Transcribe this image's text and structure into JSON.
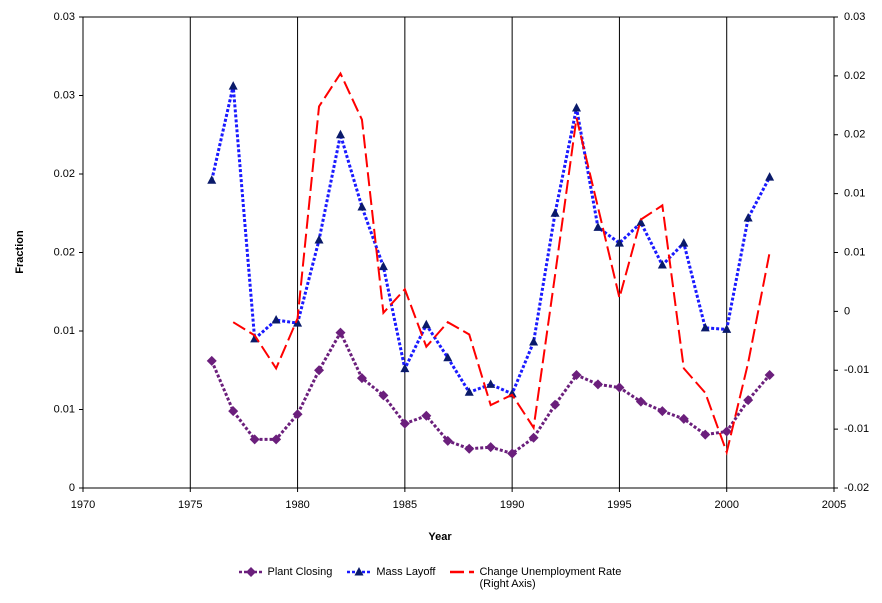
{
  "chart_data": {
    "type": "line",
    "xlabel": "Year",
    "ylabel": "Fraction",
    "x": [
      1976,
      1977,
      1978,
      1979,
      1980,
      1981,
      1982,
      1983,
      1984,
      1985,
      1986,
      1987,
      1988,
      1989,
      1990,
      1991,
      1992,
      1993,
      1994,
      1995,
      1996,
      1997,
      1998,
      1999,
      2000,
      2001,
      2002
    ],
    "series": [
      {
        "name": "Plant Closing",
        "color": "#6b1f7c",
        "linestyle": "dotted",
        "marker": "diamond",
        "values": [
          0.0081,
          0.0049,
          0.0031,
          0.0031,
          0.0047,
          0.0075,
          0.0099,
          0.007,
          0.0059,
          0.0041,
          0.0046,
          0.003,
          0.0025,
          0.0026,
          0.0022,
          0.0032,
          0.0053,
          0.0072,
          0.0066,
          0.0064,
          0.0055,
          0.0049,
          0.0044,
          0.0034,
          0.0036,
          0.0056,
          0.0072
        ]
      },
      {
        "name": "Mass Layoff",
        "color": "#1a1aff",
        "linestyle": "dotted",
        "marker": "triangle",
        "values": [
          0.0196,
          0.0256,
          0.0095,
          0.0107,
          0.0105,
          0.0158,
          0.0225,
          0.0179,
          0.0141,
          0.0076,
          0.0104,
          0.0083,
          0.0061,
          0.0066,
          0.006,
          0.0093,
          0.0175,
          0.0242,
          0.0166,
          0.0156,
          0.0169,
          0.0142,
          0.0156,
          0.0102,
          0.0101,
          0.0172,
          0.0198
        ]
      },
      {
        "name": "Change Unemployment Rate (Right Axis)",
        "color": "#ff0000",
        "linestyle": "dashed",
        "marker": null,
        "axis": "y2",
        "values": [
          null,
          -0.0024,
          -0.0038,
          -0.0073,
          -0.002,
          0.0205,
          0.024,
          0.0191,
          -0.0014,
          0.0011,
          -0.005,
          -0.0024,
          -0.0037,
          -0.0112,
          -0.0101,
          -0.0136,
          0.0026,
          0.0193,
          0.0098,
          0.0002,
          0.0085,
          0.01,
          -0.0073,
          -0.0099,
          -0.0162,
          -0.0067,
          0.005
        ]
      }
    ],
    "xlim": [
      1970,
      2005
    ],
    "xticks": [
      1970,
      1975,
      1980,
      1985,
      1990,
      1995,
      2000,
      2005
    ],
    "ylim": [
      0,
      0.03
    ],
    "yticks": [
      0,
      {
        "value": 0.005,
        "label": "0.01"
      },
      0.01,
      {
        "value": 0.015,
        "label": "0.02"
      },
      0.02,
      {
        "value": 0.025,
        "label": "0.03"
      },
      0.03
    ],
    "y2lim": [
      -0.02,
      0.03
    ],
    "y2ticks": [
      -0.02,
      {
        "value": -0.01375,
        "label": "-0.01"
      },
      {
        "value": -0.0075,
        "label": "-0.01"
      },
      {
        "value": -0.00125,
        "label": "0"
      },
      {
        "value": 0.005,
        "label": "0.01"
      },
      {
        "value": 0.01125,
        "label": "0.01"
      },
      {
        "value": 0.0175,
        "label": "0.02"
      },
      {
        "value": 0.02375,
        "label": "0.02"
      },
      0.03
    ],
    "xgrid": true,
    "legend": "bottom"
  }
}
